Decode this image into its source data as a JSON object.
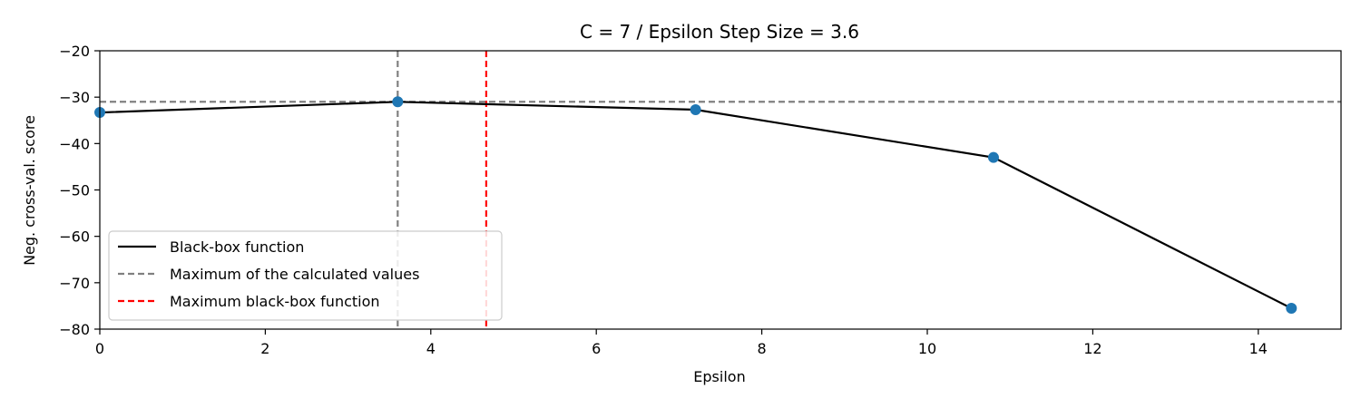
{
  "chart_data": {
    "type": "line",
    "title": "C = 7 / Epsilon Step Size = 3.6",
    "xlabel": "Epsilon",
    "ylabel": "Neg. cross-val. score",
    "xlim": [
      0,
      15
    ],
    "ylim": [
      -80,
      -20
    ],
    "xticks": [
      0,
      2,
      4,
      6,
      8,
      10,
      12,
      14
    ],
    "yticks": [
      -80,
      -70,
      -60,
      -50,
      -40,
      -30,
      -20
    ],
    "tick_labels_x": [
      "0",
      "2",
      "4",
      "6",
      "8",
      "10",
      "12",
      "14"
    ],
    "tick_labels_y": [
      "−80",
      "−70",
      "−60",
      "−50",
      "−40",
      "−30",
      "−20"
    ],
    "grid": false,
    "legend_position": "lower-left",
    "series": [
      {
        "name": "Black-box function",
        "x": [
          0,
          3.6,
          7.2,
          10.8,
          14.4
        ],
        "y": [
          -33.3,
          -31.0,
          -32.7,
          -43.0,
          -75.5
        ],
        "color": "#000000",
        "line_style": "solid",
        "markers": true,
        "marker_color": "#1f77b4"
      }
    ],
    "reference_lines": [
      {
        "name": "Maximum of the calculated values",
        "orientation": "horizontal",
        "value": -31.0,
        "color": "#808080",
        "line_style": "dashed"
      },
      {
        "name": "Maximum of the calculated values",
        "orientation": "vertical",
        "value": 3.6,
        "color": "#808080",
        "line_style": "dashed"
      },
      {
        "name": "Maximum black-box function",
        "orientation": "vertical",
        "value": 4.67,
        "color": "#ff0000",
        "line_style": "dashed"
      }
    ],
    "legend": [
      {
        "label": "Black-box function",
        "color": "#000000",
        "line_style": "solid"
      },
      {
        "label": "Maximum of the calculated values",
        "color": "#808080",
        "line_style": "dashed"
      },
      {
        "label": "Maximum black-box function",
        "color": "#ff0000",
        "line_style": "dashed"
      }
    ]
  }
}
